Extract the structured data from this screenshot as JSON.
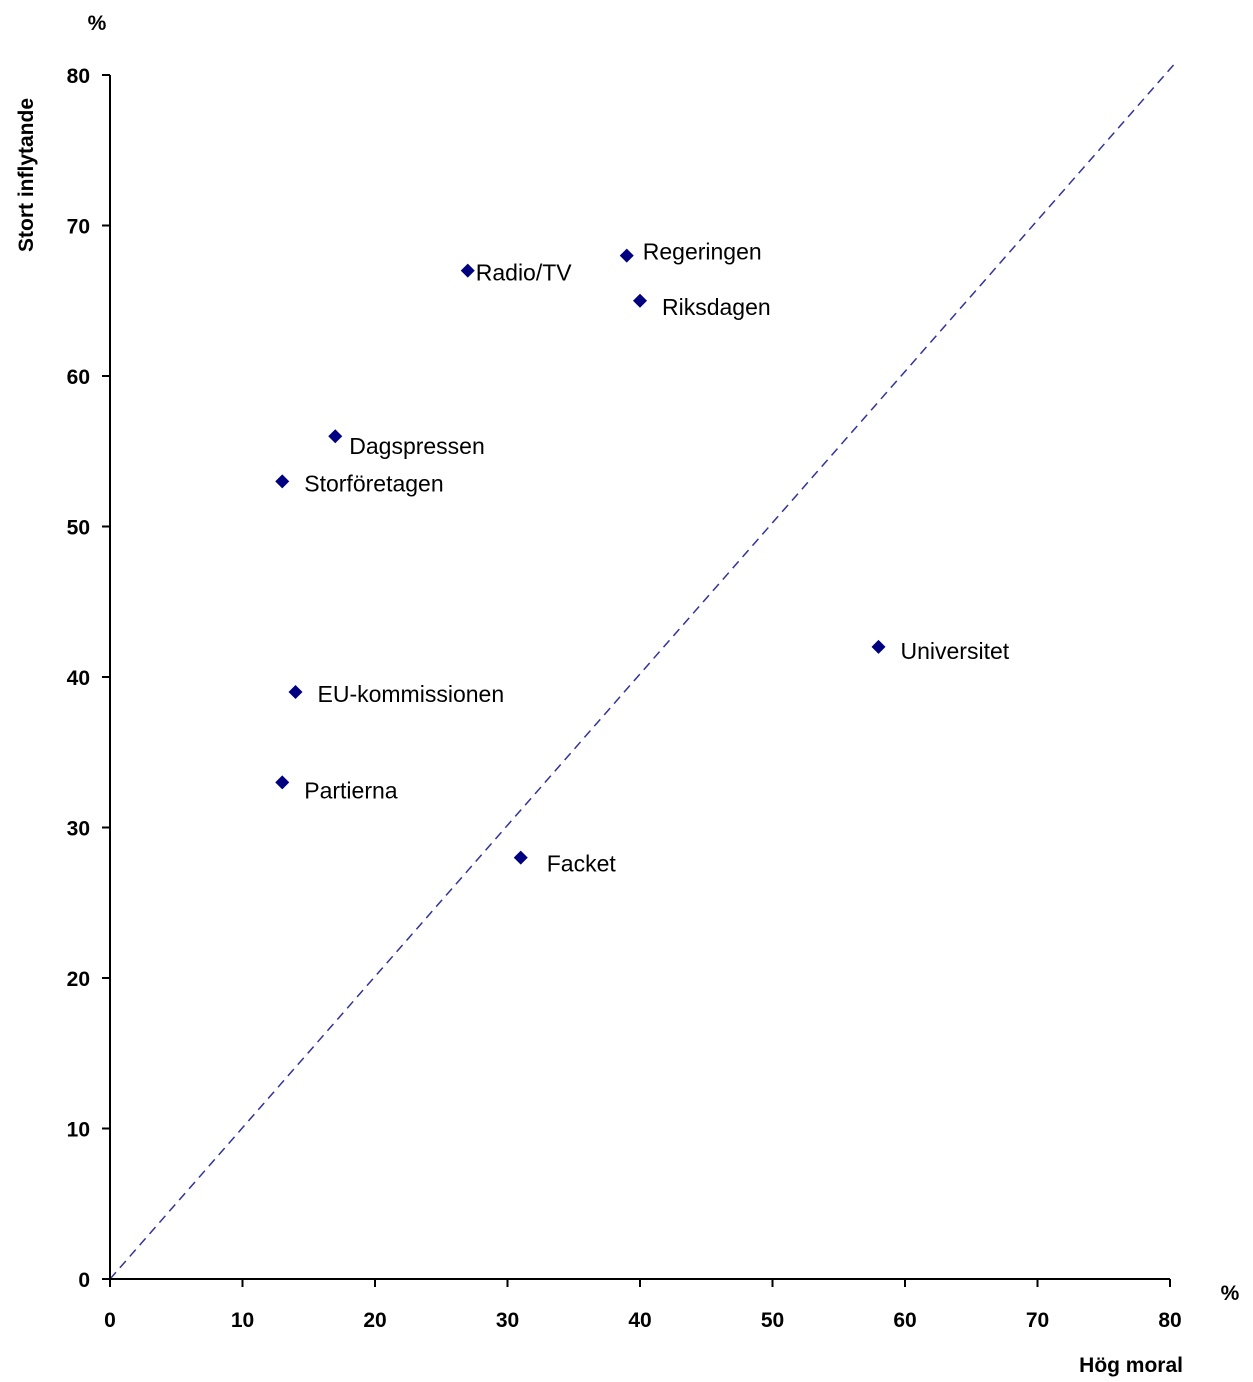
{
  "chart_data": {
    "type": "scatter",
    "title": "",
    "xlabel": "Hög moral",
    "ylabel": "Stort inflytande",
    "x_unit": "%",
    "y_unit": "%",
    "xlim": [
      0,
      80
    ],
    "ylim": [
      0,
      80
    ],
    "x_ticks": [
      "0",
      "10",
      "20",
      "30",
      "40",
      "50",
      "60",
      "70",
      "80"
    ],
    "y_ticks": [
      "0",
      "10",
      "20",
      "30",
      "40",
      "50",
      "60",
      "70",
      "80"
    ],
    "grid": false,
    "marker_color": "#000080",
    "reference_line": {
      "style": "dashed",
      "color": "#333399",
      "x": [
        0,
        80
      ],
      "y": [
        0,
        80
      ]
    },
    "points": [
      {
        "label": "Radio/TV",
        "x": 27,
        "y": 67
      },
      {
        "label": "Regeringen",
        "x": 39,
        "y": 68
      },
      {
        "label": "Riksdagen",
        "x": 40,
        "y": 65
      },
      {
        "label": "Dagspressen",
        "x": 17,
        "y": 56
      },
      {
        "label": "Storföretagen",
        "x": 13,
        "y": 53
      },
      {
        "label": "Universitet",
        "x": 58,
        "y": 42
      },
      {
        "label": "EU-kommissionen",
        "x": 14,
        "y": 39
      },
      {
        "label": "Partierna",
        "x": 13,
        "y": 33
      },
      {
        "label": "Facket",
        "x": 31,
        "y": 28
      }
    ]
  }
}
